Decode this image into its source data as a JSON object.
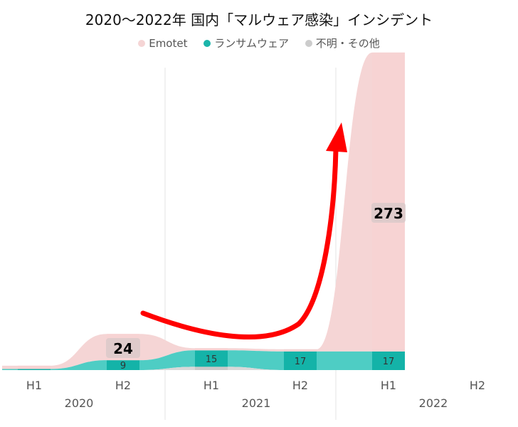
{
  "chart_data": {
    "type": "area",
    "title": "2020～2022年 国内「マルウェア感染」インシデント",
    "x_ticks": [
      "H1",
      "H2",
      "H1",
      "H2",
      "H1",
      "H2"
    ],
    "years": [
      "2020",
      "2021",
      "2022"
    ],
    "series": [
      {
        "name": "Emotet",
        "color": "#f5d5d5",
        "values": [
          3,
          24,
          2,
          2,
          273,
          null
        ]
      },
      {
        "name": "ランサムウェア",
        "color": "#4ecdc4",
        "values": [
          1,
          9,
          15,
          17,
          17,
          null
        ]
      },
      {
        "name": "不明・その他",
        "color": "#d8d8d8",
        "values": [
          0,
          0,
          3,
          0,
          0,
          null
        ]
      }
    ],
    "data_labels": {
      "Emotet": {
        "1": "24",
        "4": "273"
      },
      "ランサムウェア": {
        "1": "9",
        "2": "15",
        "3": "17",
        "4": "17"
      }
    },
    "legend_position": "top",
    "grid": "vertical year separators",
    "annotation": "red upward arrow"
  }
}
